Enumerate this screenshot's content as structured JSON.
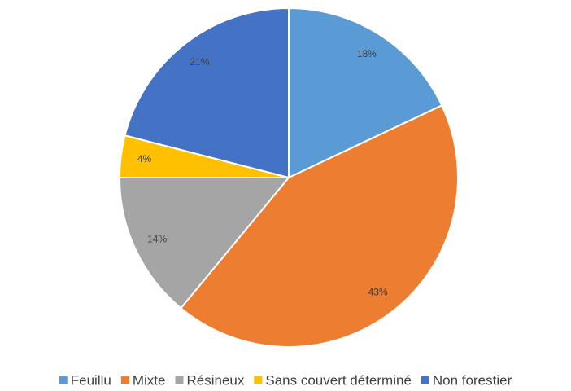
{
  "chart_data": {
    "type": "pie",
    "categories": [
      "Feuillu",
      "Mixte",
      "Résineux",
      "Sans couvert déterminé",
      "Non forestier"
    ],
    "values": [
      18,
      43,
      14,
      4,
      21
    ],
    "value_labels": [
      "18%",
      "43%",
      "14%",
      "4%",
      "21%"
    ],
    "colors": [
      "#5b9bd5",
      "#ed7d31",
      "#a5a5a5",
      "#ffc000",
      "#4472c4"
    ],
    "legend": "bottom"
  }
}
